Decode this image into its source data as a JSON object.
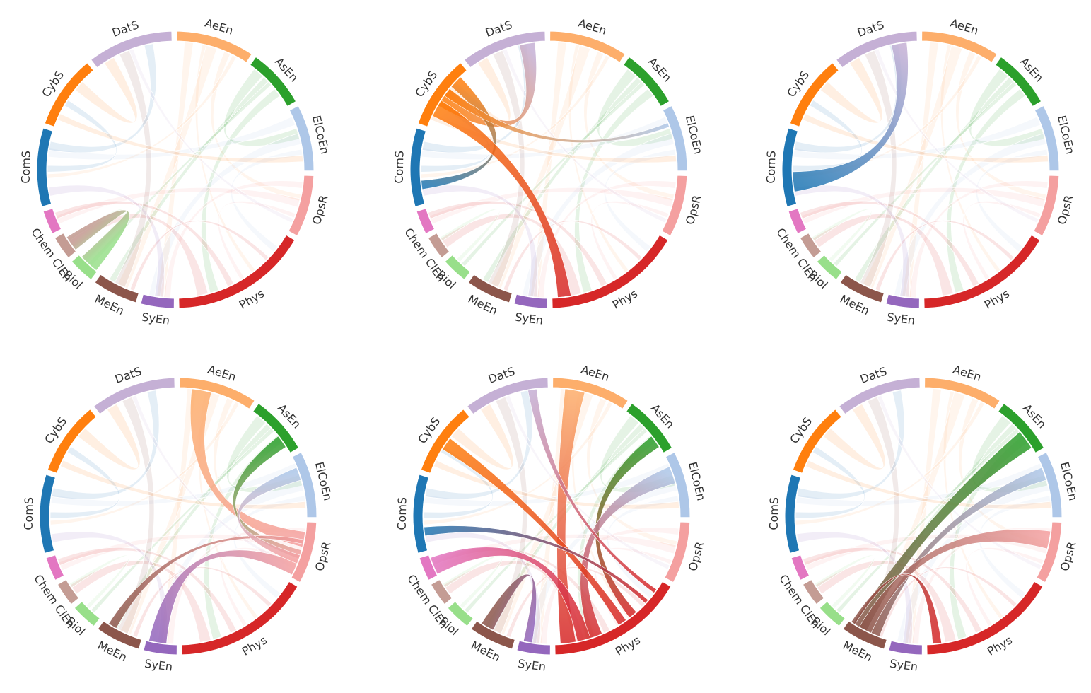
{
  "groups": [
    {
      "id": "AeEn",
      "label": "AeEn",
      "color": "#fdae6b"
    },
    {
      "id": "AsEn",
      "label": "AsEn",
      "color": "#2ca02c"
    },
    {
      "id": "ElCoEn",
      "label": "ElCoEn",
      "color": "#aec7e8"
    },
    {
      "id": "OpsR",
      "label": "OpsR",
      "color": "#f4a0a0"
    },
    {
      "id": "Phys",
      "label": "Phys",
      "color": "#d62728"
    },
    {
      "id": "SyEn",
      "label": "SyEn",
      "color": "#9467bd"
    },
    {
      "id": "MeEn",
      "label": "MeEn",
      "color": "#8c564b"
    },
    {
      "id": "Biol",
      "label": "Biol",
      "color": "#98df8a"
    },
    {
      "id": "ChemClEn",
      "label": "Chem ClEn",
      "color": "#c49c94"
    },
    {
      "id": "Chem2",
      "label": "",
      "color": "#e377c2"
    },
    {
      "id": "ComS",
      "label": "ComS",
      "color": "#1f77b4"
    },
    {
      "id": "CybS",
      "label": "CybS",
      "color": "#ff7f0e"
    },
    {
      "id": "DatS",
      "label": "DatS",
      "color": "#c5b0d5"
    }
  ],
  "background_links": [
    [
      "AeEn",
      "Phys"
    ],
    [
      "AeEn",
      "OpsR"
    ],
    [
      "AeEn",
      "SyEn"
    ],
    [
      "AeEn",
      "MeEn"
    ],
    [
      "AeEn",
      "ComS"
    ],
    [
      "AsEn",
      "MeEn"
    ],
    [
      "AsEn",
      "Phys"
    ],
    [
      "AsEn",
      "ElCoEn"
    ],
    [
      "AsEn",
      "Biol"
    ],
    [
      "ElCoEn",
      "Phys"
    ],
    [
      "ElCoEn",
      "ComS"
    ],
    [
      "ElCoEn",
      "SyEn"
    ],
    [
      "OpsR",
      "Phys"
    ],
    [
      "OpsR",
      "SyEn"
    ],
    [
      "OpsR",
      "Chem2"
    ],
    [
      "Phys",
      "ChemClEn"
    ],
    [
      "Phys",
      "MeEn"
    ],
    [
      "Phys",
      "Chem2"
    ],
    [
      "SyEn",
      "ComS"
    ],
    [
      "MeEn",
      "DatS"
    ],
    [
      "Biol",
      "ChemClEn"
    ],
    [
      "ComS",
      "CybS"
    ],
    [
      "ComS",
      "DatS"
    ],
    [
      "CybS",
      "DatS"
    ],
    [
      "DatS",
      "OpsR"
    ],
    [
      "CybS",
      "ElCoEn"
    ]
  ],
  "panels": [
    {
      "highlight": [
        [
          "Biol",
          "ChemClEn"
        ]
      ]
    },
    {
      "highlight": [
        [
          "CybS",
          "DatS"
        ],
        [
          "CybS",
          "ComS"
        ],
        [
          "CybS",
          "Phys"
        ],
        [
          "CybS",
          "ElCoEn"
        ]
      ]
    },
    {
      "highlight": [
        [
          "ComS",
          "DatS"
        ]
      ]
    },
    {
      "highlight": [
        [
          "AeEn",
          "OpsR"
        ],
        [
          "AsEn",
          "OpsR"
        ],
        [
          "SyEn",
          "OpsR"
        ],
        [
          "MeEn",
          "OpsR"
        ],
        [
          "ElCoEn",
          "OpsR"
        ]
      ]
    },
    {
      "highlight": [
        [
          "AeEn",
          "Phys"
        ],
        [
          "AsEn",
          "Phys"
        ],
        [
          "ElCoEn",
          "Phys"
        ],
        [
          "DatS",
          "Phys"
        ],
        [
          "CybS",
          "Phys"
        ],
        [
          "Chem2",
          "Phys"
        ],
        [
          "ComS",
          "Phys"
        ],
        [
          "MeEn",
          "SyEn"
        ]
      ]
    },
    {
      "highlight": [
        [
          "AsEn",
          "MeEn"
        ],
        [
          "ElCoEn",
          "MeEn"
        ],
        [
          "OpsR",
          "MeEn"
        ],
        [
          "Phys",
          "MeEn"
        ]
      ]
    }
  ]
}
